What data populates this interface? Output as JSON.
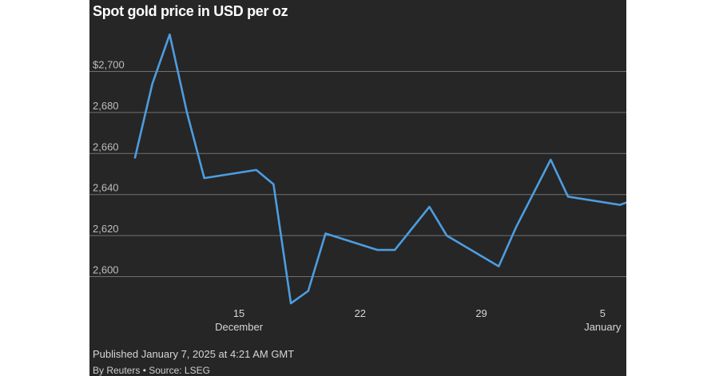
{
  "header": {
    "title": "Spot gold price in USD per oz"
  },
  "footer": {
    "published": "Published January 7, 2025 at 4:21 AM GMT",
    "credit": "By Reuters • Source: LSEG"
  },
  "colors": {
    "background": "#262626",
    "line": "#4d9de0",
    "grid": "#707070"
  },
  "chart_data": {
    "type": "line",
    "title": "Spot gold price in USD per oz",
    "xlabel": "",
    "ylabel": "",
    "ylim": [
      2585,
      2718
    ],
    "xlim": [
      "2024-12-09",
      "2025-01-06"
    ],
    "yticks": [
      {
        "value": 2600,
        "label": "2,600"
      },
      {
        "value": 2620,
        "label": "2,620"
      },
      {
        "value": 2640,
        "label": "2,640"
      },
      {
        "value": 2660,
        "label": "2,660"
      },
      {
        "value": 2680,
        "label": "2,680"
      },
      {
        "value": 2700,
        "label": "$2,700"
      }
    ],
    "xticks": [
      {
        "date": "2024-12-15",
        "day": "15",
        "month": "December"
      },
      {
        "date": "2024-12-22",
        "day": "22",
        "month": ""
      },
      {
        "date": "2024-12-29",
        "day": "29",
        "month": ""
      },
      {
        "date": "2025-01-05",
        "day": "5",
        "month": "January"
      }
    ],
    "grid": true,
    "series": [
      {
        "x": [
          "2024-12-09",
          "2024-12-10",
          "2024-12-11",
          "2024-12-12",
          "2024-12-13",
          "2024-12-16",
          "2024-12-17",
          "2024-12-18",
          "2024-12-19",
          "2024-12-20",
          "2024-12-23",
          "2024-12-24",
          "2024-12-26",
          "2024-12-27",
          "2024-12-30",
          "2024-12-31",
          "2025-01-02",
          "2025-01-03",
          "2025-01-06",
          "2025-01-07"
        ],
        "y": [
          2658,
          2694,
          2718,
          2680,
          2648,
          2652,
          2645,
          2587,
          2593,
          2621,
          2613,
          2613,
          2634,
          2620,
          2605,
          2624,
          2657,
          2639,
          2635,
          2638
        ]
      }
    ]
  }
}
